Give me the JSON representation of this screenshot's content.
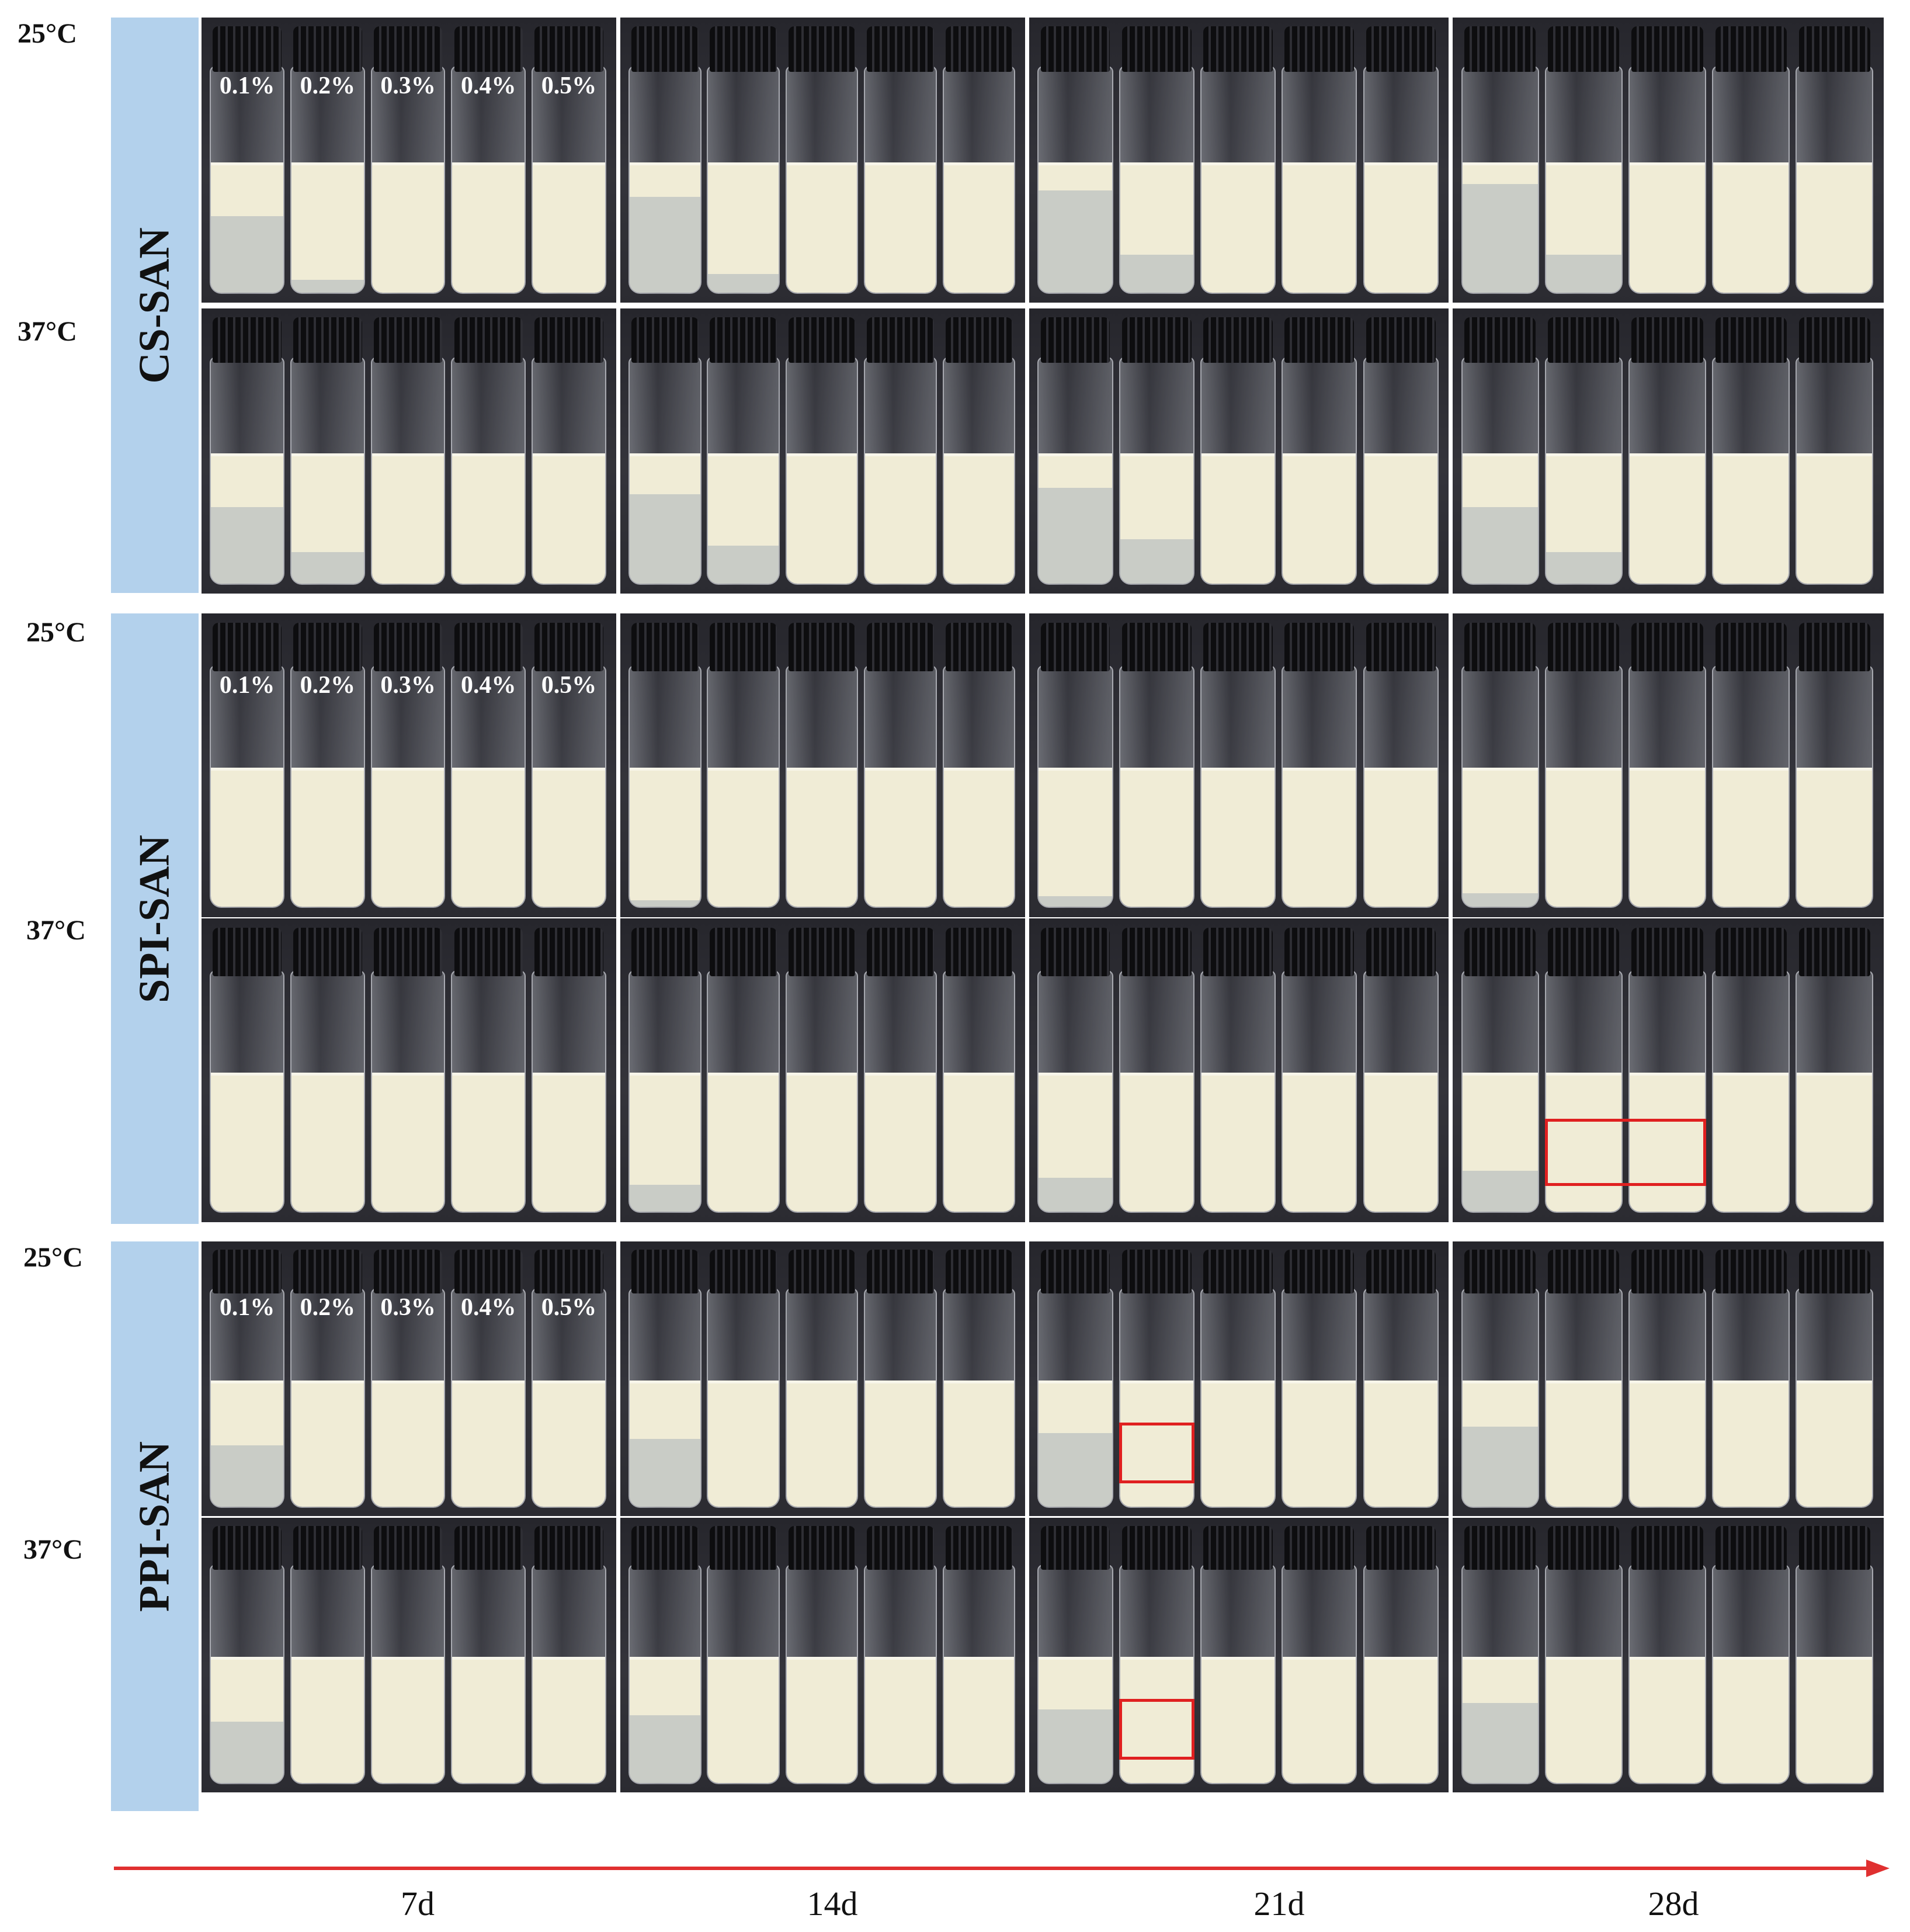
{
  "rows": [
    {
      "label": "CS-SAN",
      "temps": [
        "25°C",
        "37°C"
      ]
    },
    {
      "label": "SPI-SAN",
      "temps": [
        "25°C",
        "37°C"
      ]
    },
    {
      "label": "PPI-SAN",
      "temps": [
        "25°C",
        "37°C"
      ]
    }
  ],
  "concentrations": [
    "0.1%",
    "0.2%",
    "0.3%",
    "0.4%",
    "0.5%"
  ],
  "days": [
    "7d",
    "14d",
    "21d",
    "28d"
  ],
  "colors": {
    "sample_strip": "#b3d1ec",
    "time_arrow": "#e03030",
    "highlight_box": "#e02020",
    "emulsion": "#f0ecd6",
    "serum_layer": "#c9ccc6"
  },
  "serum_layer_fraction": {
    "CS-SAN": {
      "25°C": [
        [
          0.6,
          0.1,
          0,
          0,
          0
        ],
        [
          0.75,
          0.15,
          0,
          0,
          0
        ],
        [
          0.8,
          0.3,
          0,
          0,
          0
        ],
        [
          0.85,
          0.3,
          0,
          0,
          0
        ]
      ],
      "37°C": [
        [
          0.6,
          0.25,
          0,
          0,
          0
        ],
        [
          0.7,
          0.3,
          0,
          0,
          0
        ],
        [
          0.75,
          0.35,
          0,
          0,
          0
        ],
        [
          0.6,
          0.25,
          0,
          0,
          0
        ]
      ]
    },
    "SPI-SAN": {
      "25°C": [
        [
          0,
          0,
          0,
          0,
          0
        ],
        [
          0.05,
          0,
          0,
          0,
          0
        ],
        [
          0.08,
          0,
          0,
          0,
          0
        ],
        [
          0.1,
          0,
          0,
          0,
          0
        ]
      ],
      "37°C": [
        [
          0,
          0,
          0,
          0,
          0
        ],
        [
          0.2,
          0,
          0,
          0,
          0
        ],
        [
          0.25,
          0,
          0,
          0,
          0
        ],
        [
          0.3,
          0,
          0,
          0,
          0
        ]
      ]
    },
    "PPI-SAN": {
      "25°C": [
        [
          0.5,
          0,
          0,
          0,
          0
        ],
        [
          0.55,
          0,
          0,
          0,
          0
        ],
        [
          0.6,
          0,
          0,
          0,
          0
        ],
        [
          0.65,
          0,
          0,
          0,
          0
        ]
      ],
      "37°C": [
        [
          0.5,
          0,
          0,
          0,
          0
        ],
        [
          0.55,
          0,
          0,
          0,
          0
        ],
        [
          0.6,
          0,
          0,
          0,
          0
        ],
        [
          0.65,
          0,
          0,
          0,
          0
        ]
      ]
    }
  },
  "highlights": [
    {
      "row": "SPI-SAN",
      "temp": "37°C",
      "day": "28d",
      "vials": [
        "0.2%",
        "0.3%"
      ]
    },
    {
      "row": "PPI-SAN",
      "temp": "25°C",
      "day": "21d",
      "vials": [
        "0.2%"
      ]
    },
    {
      "row": "PPI-SAN",
      "temp": "37°C",
      "day": "21d",
      "vials": [
        "0.2%"
      ]
    }
  ]
}
